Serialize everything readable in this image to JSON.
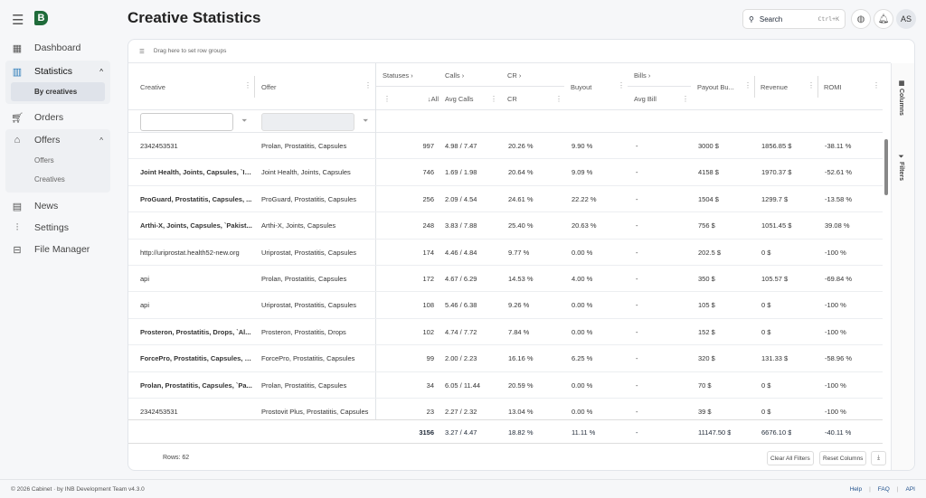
{
  "app": {
    "logo": "B",
    "page_title": "Creative Statistics"
  },
  "sidebar": {
    "items": [
      {
        "label": "Dashboard",
        "icon": "dashboard-icon"
      },
      {
        "label": "Statistics",
        "icon": "chart-icon",
        "children": [
          "By creatives"
        ]
      },
      {
        "label": "Orders",
        "icon": "cart-icon"
      },
      {
        "label": "Offers",
        "icon": "bag-icon",
        "children": [
          "Offers",
          "Creatives"
        ]
      },
      {
        "label": "News",
        "icon": "news-icon"
      },
      {
        "label": "Settings",
        "icon": "sliders-icon"
      },
      {
        "label": "File Manager",
        "icon": "folder-icon"
      }
    ]
  },
  "header": {
    "search_label": "Search",
    "search_shortcut": "Ctrl+K",
    "avatar": "AS"
  },
  "grid": {
    "row_group_hint": "Drag here to set row groups",
    "groups": {
      "statuses": "Statuses ›",
      "calls": "Calls ›",
      "cr": "CR ›",
      "bills": "Bills ›"
    },
    "columns": {
      "creative": "Creative",
      "offer": "Offer",
      "all": "↓All",
      "avg_calls": "Avg Calls",
      "cr": "CR",
      "buyout": "Buyout",
      "avg_bill": "Avg Bill",
      "payout": "Payout Bu...",
      "revenue": "Revenue",
      "romi": "ROMI"
    },
    "rows": [
      {
        "creative": "2342453531",
        "bold": false,
        "offer": "Prolan, Prostatitis, Capsules",
        "all": "997",
        "calls": "4.98 / 7.47",
        "cr": "20.26 %",
        "buyout": "9.90 %",
        "bill": "-",
        "payout": "3000 $",
        "revenue": "1856.85 $",
        "romi": "-38.11 %"
      },
      {
        "creative": "Joint Health, Joints, Capsules, `Iv...",
        "bold": true,
        "offer": "Joint Health, Joints, Capsules",
        "all": "746",
        "calls": "1.69 / 1.98",
        "cr": "20.64 %",
        "buyout": "9.09 %",
        "bill": "-",
        "payout": "4158 $",
        "revenue": "1970.37 $",
        "romi": "-52.61 %"
      },
      {
        "creative": "ProGuard, Prostatitis, Capsules, ...",
        "bold": true,
        "offer": "ProGuard, Prostatitis, Capsules",
        "all": "256",
        "calls": "2.09 / 4.54",
        "cr": "24.61 %",
        "buyout": "22.22 %",
        "bill": "-",
        "payout": "1504 $",
        "revenue": "1299.7 $",
        "romi": "-13.58 %"
      },
      {
        "creative": "Arthi-X, Joints, Capsules, `Pakist...",
        "bold": true,
        "offer": "Arthi-X, Joints, Capsules",
        "all": "248",
        "calls": "3.83 / 7.88",
        "cr": "25.40 %",
        "buyout": "20.63 %",
        "bill": "-",
        "payout": "756 $",
        "revenue": "1051.45 $",
        "romi": "39.08 %"
      },
      {
        "creative": "http://uriprostat.health52-new.org",
        "bold": false,
        "offer": "Uriprostat, Prostatitis, Capsules",
        "all": "174",
        "calls": "4.46 / 4.84",
        "cr": "9.77 %",
        "buyout": "0.00 %",
        "bill": "-",
        "payout": "202.5 $",
        "revenue": "0 $",
        "romi": "-100 %"
      },
      {
        "creative": "api",
        "bold": false,
        "offer": "Prolan, Prostatitis, Capsules",
        "all": "172",
        "calls": "4.67 / 6.29",
        "cr": "14.53 %",
        "buyout": "4.00 %",
        "bill": "-",
        "payout": "350 $",
        "revenue": "105.57 $",
        "romi": "-69.84 %"
      },
      {
        "creative": "api",
        "bold": false,
        "offer": "Uriprostat, Prostatitis, Capsules",
        "all": "108",
        "calls": "5.46 / 6.38",
        "cr": "9.26 %",
        "buyout": "0.00 %",
        "bill": "-",
        "payout": "105 $",
        "revenue": "0 $",
        "romi": "-100 %"
      },
      {
        "creative": "Prosteron, Prostatitis, Drops, `Al...",
        "bold": true,
        "offer": "Prosteron, Prostatitis, Drops",
        "all": "102",
        "calls": "4.74 / 7.72",
        "cr": "7.84 %",
        "buyout": "0.00 %",
        "bill": "-",
        "payout": "152 $",
        "revenue": "0 $",
        "romi": "-100 %"
      },
      {
        "creative": "ForcePro, Prostatitis, Capsules, `I...",
        "bold": true,
        "offer": "ForcePro, Prostatitis, Capsules",
        "all": "99",
        "calls": "2.00 / 2.23",
        "cr": "16.16 %",
        "buyout": "6.25 %",
        "bill": "-",
        "payout": "320 $",
        "revenue": "131.33 $",
        "romi": "-58.96 %"
      },
      {
        "creative": "Prolan, Prostatitis, Capsules, `Pa...",
        "bold": true,
        "offer": "Prolan, Prostatitis, Capsules",
        "all": "34",
        "calls": "6.05 / 11.44",
        "cr": "20.59 %",
        "buyout": "0.00 %",
        "bill": "-",
        "payout": "70 $",
        "revenue": "0 $",
        "romi": "-100 %"
      },
      {
        "creative": "2342453531",
        "bold": false,
        "offer": "Prostovit Plus, Prostatitis, Capsules",
        "all": "23",
        "calls": "2.27 / 2.32",
        "cr": "13.04 %",
        "buyout": "0.00 %",
        "bill": "-",
        "payout": "39 $",
        "revenue": "0 $",
        "romi": "-100 %"
      }
    ],
    "totals": {
      "all": "3156",
      "calls": "3.27 / 4.47",
      "cr": "18.82 %",
      "buyout": "11.11 %",
      "bill": "-",
      "payout": "11147.50 $",
      "revenue": "6676.10 $",
      "romi": "-40.11 %"
    },
    "rows_count": "Rows: 62",
    "clear_filters": "Clear All Filters",
    "reset_columns": "Reset Columns",
    "side_panel": {
      "columns": "Columns",
      "filters": "Filters"
    }
  },
  "footer": {
    "copyright": "© 2026 Cabinet · by INB Development Team v4.3.0",
    "links": [
      "Help",
      "FAQ",
      "API"
    ]
  }
}
